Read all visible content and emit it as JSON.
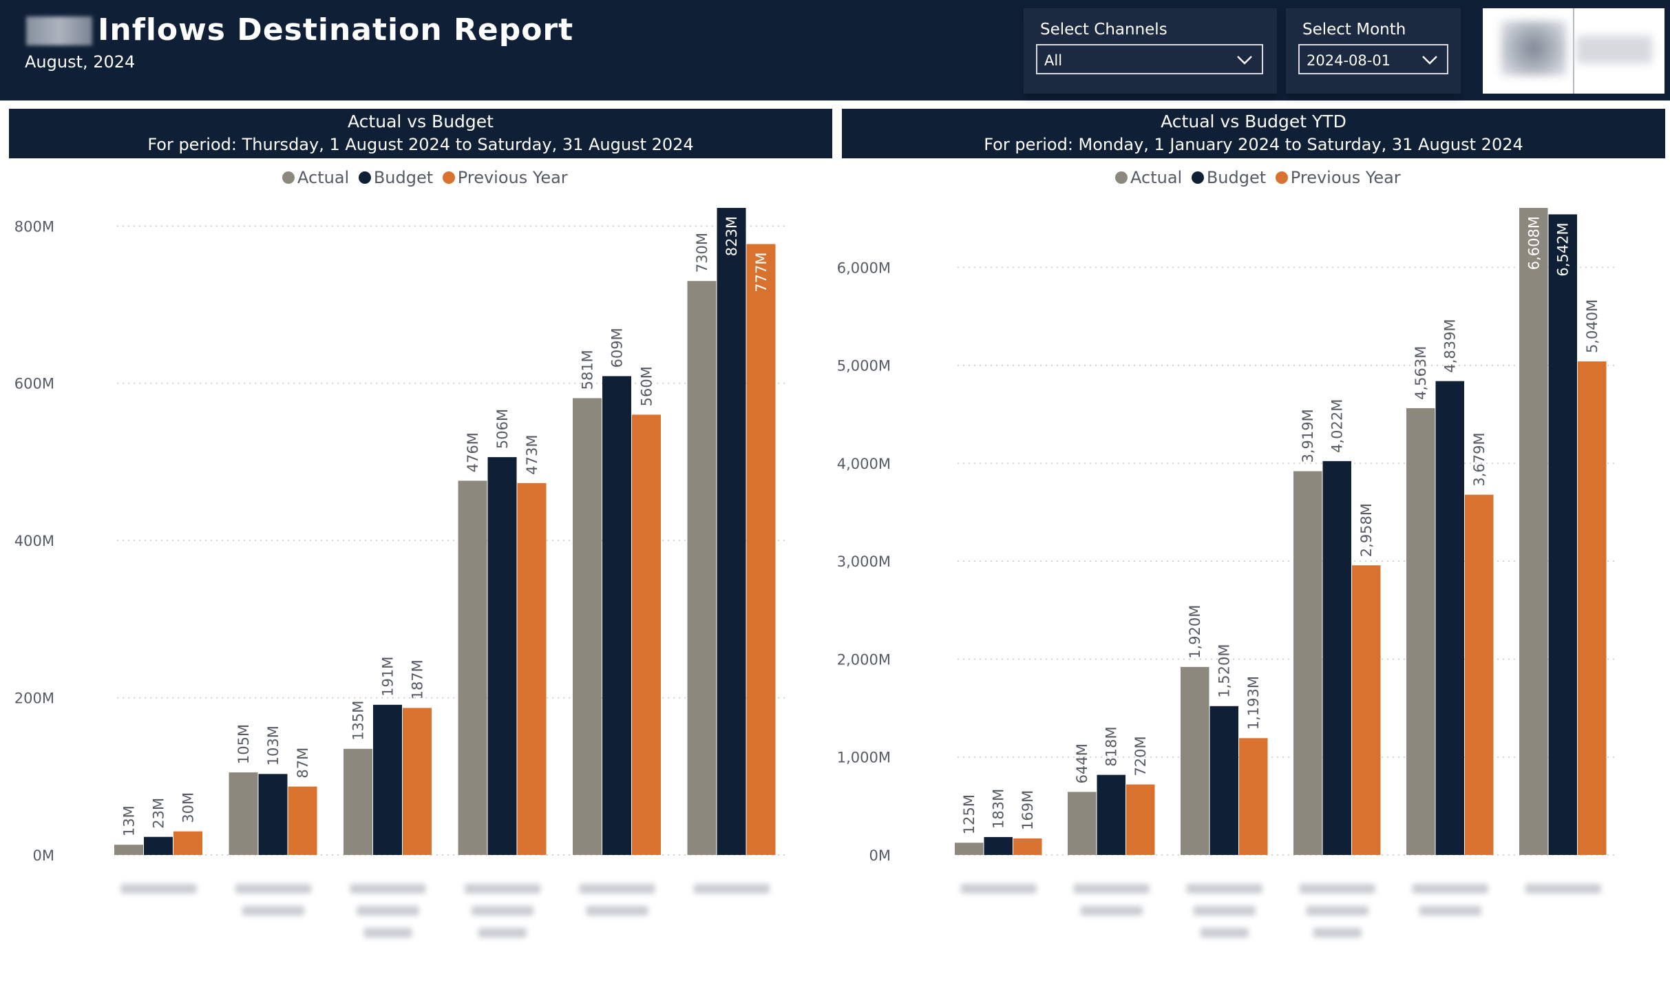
{
  "header": {
    "title": "Inflows Destination Report",
    "subtitle": "August, 2024"
  },
  "slicers": {
    "channels": {
      "label": "Select Channels",
      "value": "All"
    },
    "month": {
      "label": "Select Month",
      "value": "2024-08-01"
    }
  },
  "charts": {
    "left": {
      "title": "Actual vs Budget",
      "period": "For period: Thursday, 1 August 2024 to Saturday, 31 August 2024"
    },
    "right": {
      "title": "Actual vs Budget YTD",
      "period": "For period: Monday, 1 January 2024 to Saturday, 31 August 2024"
    }
  },
  "legend": [
    {
      "name": "Actual",
      "color": "#8c887d"
    },
    {
      "name": "Budget",
      "color": "#0f1f36"
    },
    {
      "name": "Previous Year",
      "color": "#d9722e"
    }
  ],
  "chart_data": [
    {
      "type": "bar",
      "title": "Actual vs Budget",
      "categories": [
        "",
        "",
        "",
        "",
        "",
        ""
      ],
      "series": [
        {
          "name": "Actual",
          "values": [
            13,
            105,
            135,
            476,
            581,
            730
          ],
          "labels": [
            "13M",
            "105M",
            "135M",
            "476M",
            "581M",
            "730M"
          ]
        },
        {
          "name": "Budget",
          "values": [
            23,
            103,
            191,
            506,
            609,
            823
          ],
          "labels": [
            "23M",
            "103M",
            "191M",
            "506M",
            "609M",
            "823M"
          ]
        },
        {
          "name": "Previous Year",
          "values": [
            30,
            87,
            187,
            473,
            560,
            777
          ],
          "labels": [
            "30M",
            "87M",
            "187M",
            "473M",
            "560M",
            "777M"
          ]
        }
      ],
      "yticks": [
        "0M",
        "200M",
        "400M",
        "600M",
        "800M"
      ],
      "ytick_values": [
        0,
        200,
        400,
        600,
        800
      ],
      "ylim": [
        0,
        823
      ],
      "grid": true,
      "legend_position": "top-center"
    },
    {
      "type": "bar",
      "title": "Actual vs Budget YTD",
      "categories": [
        "",
        "",
        "",
        "",
        "",
        ""
      ],
      "series": [
        {
          "name": "Actual",
          "values": [
            125,
            644,
            1920,
            3919,
            4563,
            6608
          ],
          "labels": [
            "125M",
            "644M",
            "1,920M",
            "3,919M",
            "4,563M",
            "6,608M"
          ]
        },
        {
          "name": "Budget",
          "values": [
            183,
            818,
            1520,
            4022,
            4839,
            6542
          ],
          "labels": [
            "183M",
            "818M",
            "1,520M",
            "4,022M",
            "4,839M",
            "6,542M"
          ]
        },
        {
          "name": "Previous Year",
          "values": [
            169,
            720,
            1193,
            2958,
            3679,
            5040
          ],
          "labels": [
            "169M",
            "720M",
            "1,193M",
            "2,958M",
            "3,679M",
            "5,040M"
          ]
        }
      ],
      "yticks": [
        "0M",
        "1,000M",
        "2,000M",
        "3,000M",
        "4,000M",
        "5,000M",
        "6,000M"
      ],
      "ytick_values": [
        0,
        1000,
        2000,
        3000,
        4000,
        5000,
        6000
      ],
      "ylim": [
        0,
        6608
      ],
      "grid": true,
      "legend_position": "top-center"
    }
  ]
}
